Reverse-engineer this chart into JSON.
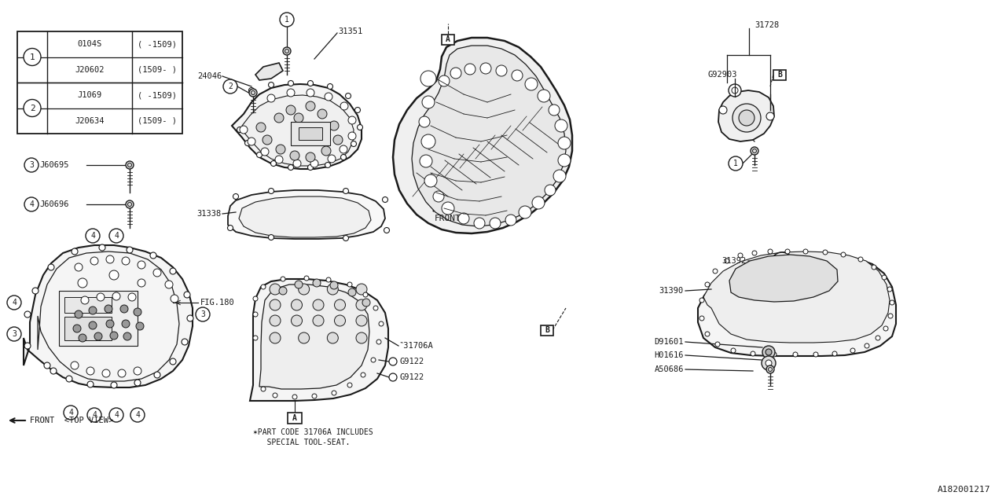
{
  "bg_color": "#ffffff",
  "line_color": "#1a1a1a",
  "figure_code": "A182001217",
  "legend_table": {
    "part_rows": [
      [
        "0104S",
        "( -1509)"
      ],
      [
        "J20602",
        "(1509- )"
      ],
      [
        "J1069",
        "( -1509)"
      ],
      [
        "J20634",
        "(1509- )"
      ]
    ]
  },
  "font_family": "DejaVu Sans Mono"
}
